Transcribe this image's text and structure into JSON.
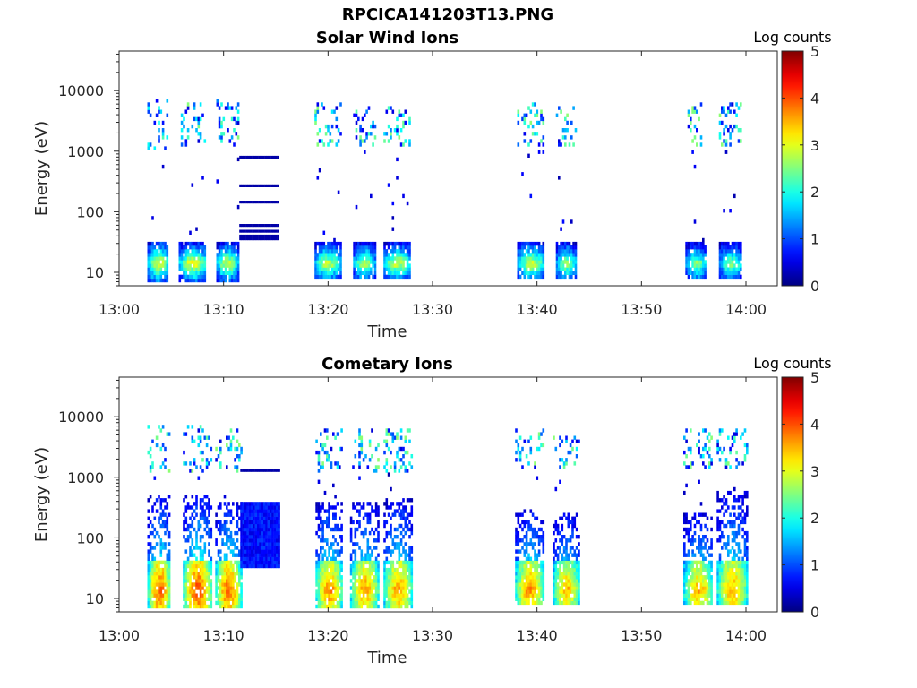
{
  "figure": {
    "title": "RPCICA141203T13.PNG"
  },
  "chart_data": [
    {
      "type": "heatmap",
      "title": "Solar Wind Ions",
      "xlabel": "Time",
      "ylabel": "Energy (eV)",
      "yscale": "log",
      "ylim": [
        6,
        45000
      ],
      "xlim": [
        "13:00",
        "14:03"
      ],
      "xticks": [
        "13:00",
        "13:10",
        "13:20",
        "13:30",
        "13:40",
        "13:50",
        "14:00"
      ],
      "yticks": [
        "10",
        "100",
        "1000",
        "10000"
      ],
      "colorbar": {
        "label": "Log counts",
        "min": 0,
        "max": 5,
        "ticks": [
          "0",
          "1",
          "2",
          "3",
          "4",
          "5"
        ]
      },
      "grid": false,
      "bursts": [
        {
          "start_min": 2.7,
          "end_min": 4.7,
          "low_e": [
            7,
            32
          ],
          "high_e": [
            1100,
            7000
          ],
          "peak": 3.1
        },
        {
          "start_min": 5.7,
          "end_min": 8.3,
          "low_e": [
            7,
            30
          ],
          "high_e": [
            1200,
            6500
          ],
          "peak": 3.2
        },
        {
          "start_min": 9.3,
          "end_min": 11.3,
          "low_e": [
            7,
            30
          ],
          "high_e": [
            1200,
            7000
          ],
          "peak": 3.0
        },
        {
          "start_min": 18.7,
          "end_min": 21.1,
          "low_e": [
            8,
            30
          ],
          "high_e": [
            1200,
            6000
          ],
          "peak": 2.9
        },
        {
          "start_min": 22.4,
          "end_min": 24.4,
          "low_e": [
            8,
            30
          ],
          "high_e": [
            1200,
            5500
          ],
          "peak": 2.8
        },
        {
          "start_min": 25.3,
          "end_min": 27.8,
          "low_e": [
            8,
            30
          ],
          "high_e": [
            1200,
            5500
          ],
          "peak": 3.0
        },
        {
          "start_min": 38.1,
          "end_min": 40.7,
          "low_e": [
            8,
            32
          ],
          "high_e": [
            1200,
            6000
          ],
          "peak": 2.9
        },
        {
          "start_min": 41.8,
          "end_min": 43.7,
          "low_e": [
            8,
            30
          ],
          "high_e": [
            1200,
            5500
          ],
          "peak": 2.7
        },
        {
          "start_min": 54.2,
          "end_min": 56.2,
          "low_e": [
            8,
            30
          ],
          "high_e": [
            1200,
            6000
          ],
          "peak": 2.6
        },
        {
          "start_min": 57.4,
          "end_min": 59.6,
          "low_e": [
            8,
            30
          ],
          "high_e": [
            1200,
            6000
          ],
          "peak": 2.6
        }
      ],
      "lines": [
        {
          "start_min": 11.5,
          "end_min": 15.2,
          "energies": [
            800,
            270,
            145,
            60,
            48,
            40,
            36
          ],
          "level": 0.2
        }
      ]
    },
    {
      "type": "heatmap",
      "title": "Cometary Ions",
      "xlabel": "Time",
      "ylabel": "Energy (eV)",
      "yscale": "log",
      "ylim": [
        6,
        45000
      ],
      "xlim": [
        "13:00",
        "14:03"
      ],
      "xticks": [
        "13:00",
        "13:10",
        "13:20",
        "13:30",
        "13:40",
        "13:50",
        "14:00"
      ],
      "yticks": [
        "10",
        "100",
        "1000",
        "10000"
      ],
      "colorbar": {
        "label": "Log counts",
        "min": 0,
        "max": 5,
        "ticks": [
          "0",
          "1",
          "2",
          "3",
          "4",
          "5"
        ]
      },
      "grid": false,
      "bursts": [
        {
          "start_min": 2.7,
          "end_min": 4.9,
          "low_e": [
            7,
            500
          ],
          "high_e": [
            1200,
            7000
          ],
          "peak": 3.9
        },
        {
          "start_min": 6.1,
          "end_min": 8.8,
          "low_e": [
            7,
            550
          ],
          "high_e": [
            1200,
            7000
          ],
          "peak": 4.0
        },
        {
          "start_min": 9.2,
          "end_min": 11.6,
          "low_e": [
            7,
            400
          ],
          "high_e": [
            1200,
            6500
          ],
          "peak": 3.9
        },
        {
          "start_min": 18.8,
          "end_min": 21.3,
          "low_e": [
            7,
            400
          ],
          "high_e": [
            1200,
            6500
          ],
          "peak": 3.7
        },
        {
          "start_min": 22.1,
          "end_min": 24.8,
          "low_e": [
            7,
            400
          ],
          "high_e": [
            1200,
            6500
          ],
          "peak": 3.6
        },
        {
          "start_min": 25.3,
          "end_min": 28.0,
          "low_e": [
            7,
            450
          ],
          "high_e": [
            1200,
            6500
          ],
          "peak": 3.6
        },
        {
          "start_min": 37.9,
          "end_min": 40.6,
          "low_e": [
            8,
            300
          ],
          "high_e": [
            1300,
            6000
          ],
          "peak": 3.7
        },
        {
          "start_min": 41.5,
          "end_min": 44.0,
          "low_e": [
            8,
            250
          ],
          "high_e": [
            1300,
            5000
          ],
          "peak": 3.5
        },
        {
          "start_min": 54.0,
          "end_min": 56.8,
          "low_e": [
            8,
            250
          ],
          "high_e": [
            1300,
            6000
          ],
          "peak": 3.5
        },
        {
          "start_min": 57.2,
          "end_min": 60.1,
          "low_e": [
            8,
            600
          ],
          "high_e": [
            1300,
            6000
          ],
          "peak": 3.5
        }
      ],
      "lines": [
        {
          "start_min": 11.6,
          "end_min": 15.2,
          "energies": [
            1300
          ],
          "level": 0.2
        }
      ],
      "blocks": [
        {
          "start_min": 11.6,
          "end_min": 15.2,
          "e_range": [
            30,
            380
          ],
          "level": 0.6
        }
      ]
    }
  ]
}
